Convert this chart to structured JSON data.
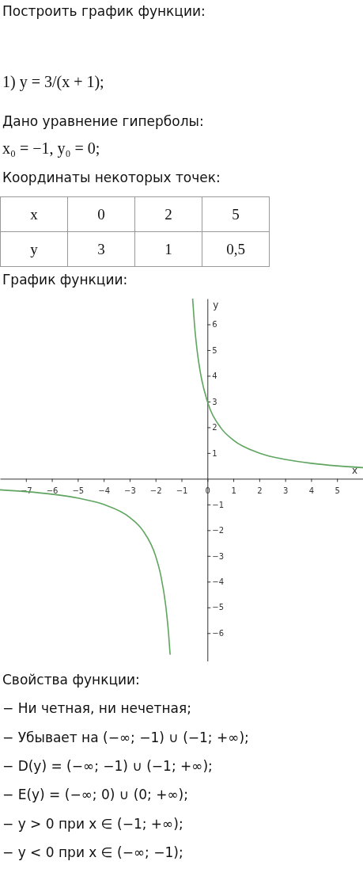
{
  "chart_data": {
    "type": "line",
    "title": "Построить график функции:",
    "xlabel": "x",
    "ylabel": "y",
    "xlim": [
      -8,
      6
    ],
    "ylim": [
      -7.1,
      7
    ],
    "xticks": [
      -7,
      -6,
      -5,
      -4,
      -3,
      -2,
      -1,
      0,
      1,
      2,
      3,
      4,
      5
    ],
    "yticks": [
      -6,
      -5,
      -4,
      -3,
      -2,
      -1,
      1,
      2,
      3,
      4,
      5,
      6
    ],
    "grid": false,
    "series": [
      {
        "color": "#5fa55f",
        "x": [
          -8,
          -7,
          -6,
          -5,
          -4,
          -3,
          -2.5,
          -2,
          -1.8,
          -1.6,
          -1.5,
          -1.44
        ],
        "values": [
          -0.43,
          -0.5,
          -0.6,
          -0.75,
          -1,
          -1.5,
          -2,
          -3,
          -3.75,
          -5,
          -6,
          -6.82
        ]
      },
      {
        "color": "#5fa55f",
        "x": [
          -0.57,
          -0.5,
          -0.4,
          -0.25,
          0,
          0.5,
          1,
          2,
          3,
          4,
          5,
          6
        ],
        "values": [
          6.98,
          6,
          5,
          4,
          3,
          2,
          1.5,
          1,
          0.75,
          0.6,
          0.5,
          0.43
        ]
      }
    ],
    "annotations": [
      "1) y = 3/(x + 1);",
      "Дано уравнение гиперболы:",
      "x₀ = −1,  y₀ = 0;",
      "Координаты некоторых точек:",
      "x",
      "0",
      "2",
      "5",
      "y",
      "3",
      "1",
      "0,5",
      "График функции:",
      "Свойства функции:",
      "− Ни четная, ни нечетная;",
      "− Убывает на (−∞; −1) ∪ (−1; +∞);",
      "− D(y) = (−∞; −1) ∪ (−1; +∞);",
      "− E(y) = (−∞; 0) ∪ (0; +∞);",
      "− y > 0 при x ∈ (−1; +∞);",
      "− y < 0 при x ∈ (−∞; −1);"
    ]
  }
}
